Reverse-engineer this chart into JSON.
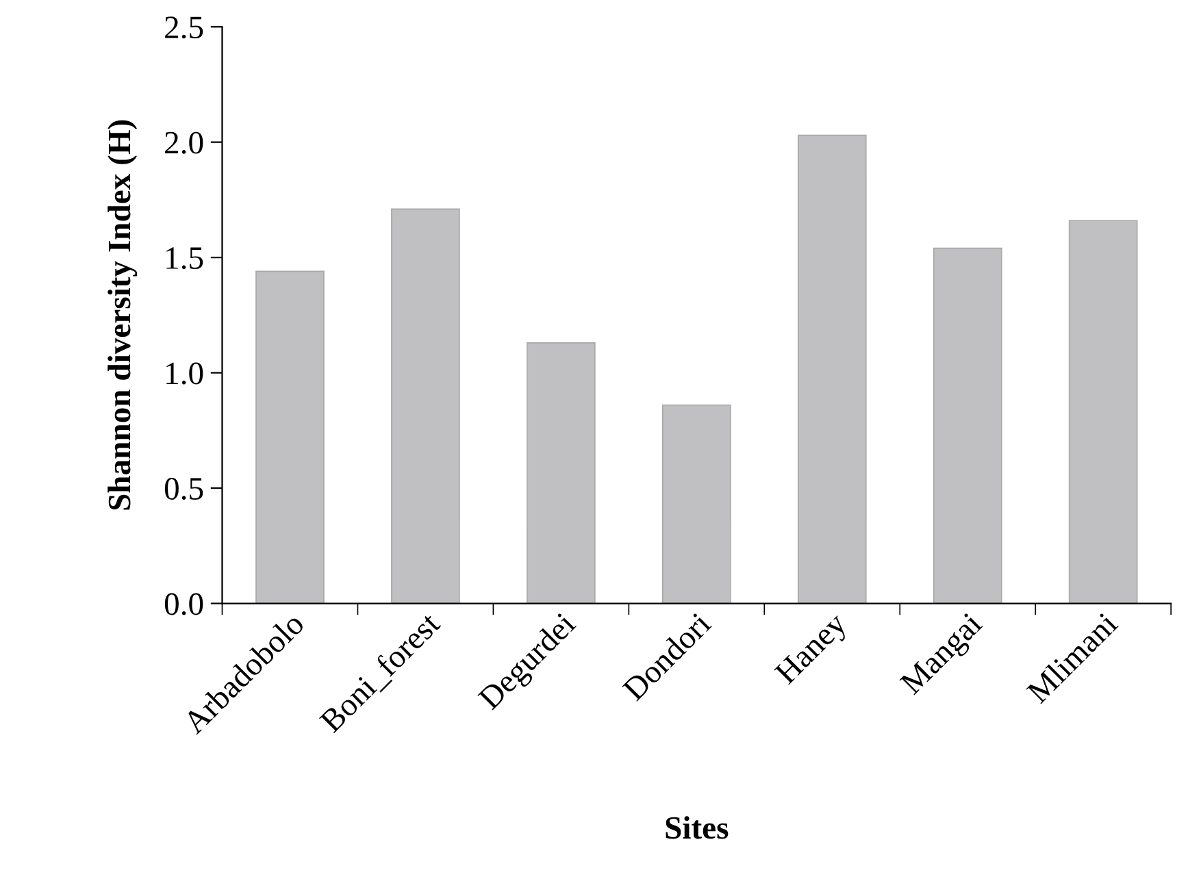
{
  "chart_data": {
    "type": "bar",
    "xlabel": "Sites",
    "ylabel": "Shannon diversity Index (H)",
    "categories": [
      "Arbadobolo",
      "Boni_forest",
      "Degurdei",
      "Dondori",
      "Haney",
      "Mangai",
      "Mlimani"
    ],
    "values": [
      1.44,
      1.71,
      1.13,
      0.86,
      2.03,
      1.54,
      1.66
    ],
    "color": "#c0bfc1",
    "ylim": [
      0,
      2.5
    ],
    "yticks": [
      {
        "value": 0,
        "label": "0.0"
      },
      {
        "value": 0.5,
        "label": "0.5"
      },
      {
        "value": 1.0,
        "label": "1.0"
      },
      {
        "value": 1.5,
        "label": "1.5"
      },
      {
        "value": 2.0,
        "label": "2.0"
      },
      {
        "value": 2.5,
        "label": "2.5"
      }
    ],
    "grid": false
  }
}
